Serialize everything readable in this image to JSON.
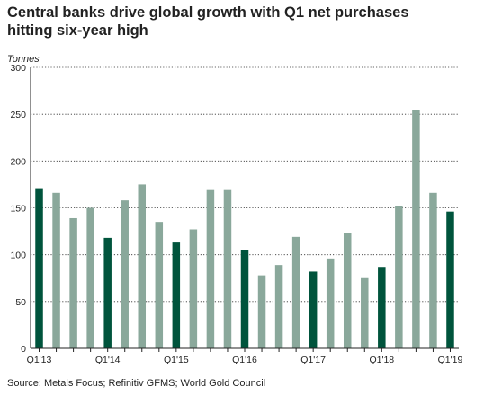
{
  "chart_data": {
    "type": "bar",
    "title": "Central banks drive global growth with Q1 net purchases hitting six-year high",
    "ylabel": "Tonnes",
    "xlabel": "",
    "ylim": [
      0,
      300
    ],
    "yticks": [
      0,
      50,
      100,
      150,
      200,
      250,
      300
    ],
    "grid": "horizontal-dotted",
    "categories": [
      "Q1'13",
      "Q2'13",
      "Q3'13",
      "Q4'13",
      "Q1'14",
      "Q2'14",
      "Q3'14",
      "Q4'14",
      "Q1'15",
      "Q2'15",
      "Q3'15",
      "Q4'15",
      "Q1'16",
      "Q2'16",
      "Q3'16",
      "Q4'16",
      "Q1'17",
      "Q2'17",
      "Q3'17",
      "Q4'17",
      "Q1'18",
      "Q2'18",
      "Q3'18",
      "Q4'18",
      "Q1'19"
    ],
    "xtick_labels": [
      "Q1'13",
      "Q1'14",
      "Q1'15",
      "Q1'16",
      "Q1'17",
      "Q1'18",
      "Q1'19"
    ],
    "values": [
      171,
      166,
      139,
      150,
      118,
      158,
      175,
      135,
      113,
      127,
      169,
      169,
      105,
      78,
      89,
      119,
      82,
      96,
      123,
      75,
      87,
      152,
      254,
      166,
      146
    ],
    "highlight": [
      true,
      false,
      false,
      false,
      true,
      false,
      false,
      false,
      true,
      false,
      false,
      false,
      true,
      false,
      false,
      false,
      true,
      false,
      false,
      false,
      true,
      false,
      false,
      false,
      true
    ],
    "colors": {
      "highlight": "#00543c",
      "other": "#8aa89b"
    },
    "source": "Source: Metals Focus; Refinitiv GFMS; World Gold Council"
  }
}
